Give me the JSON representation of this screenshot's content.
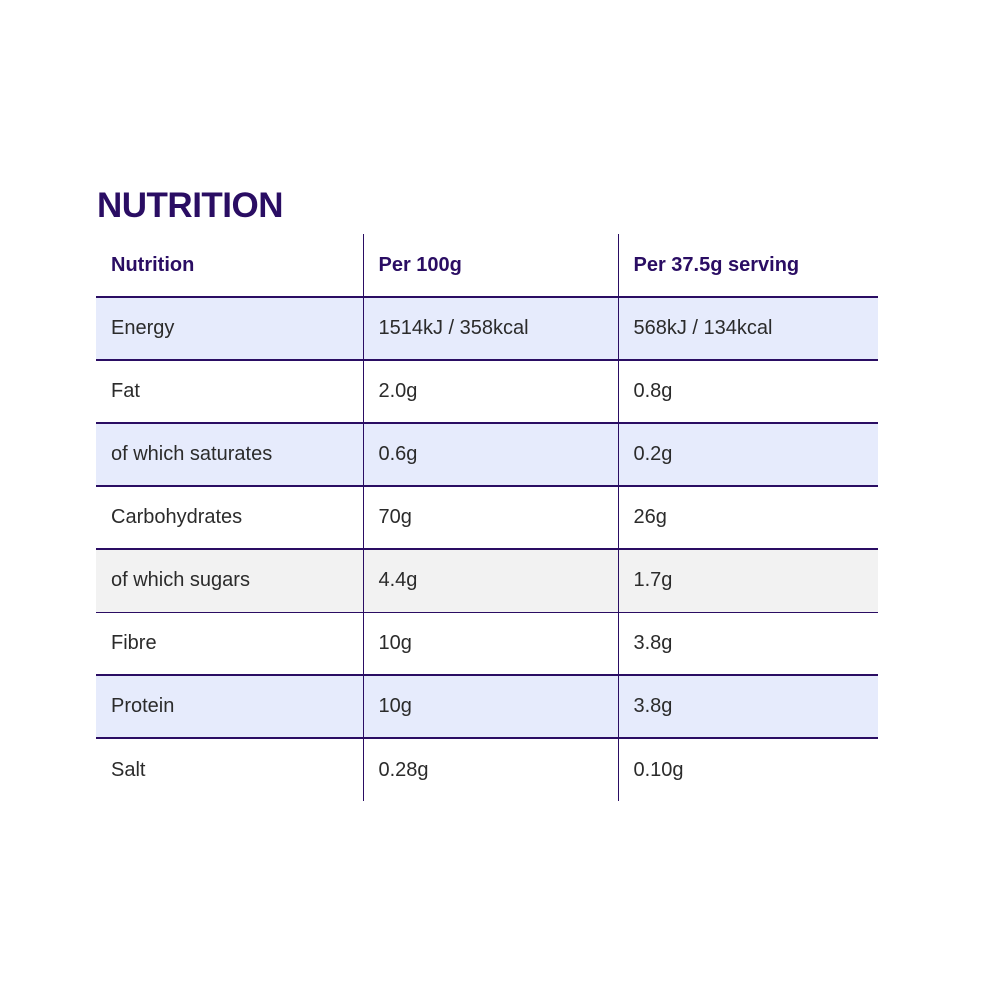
{
  "title": "NUTRITION",
  "table": {
    "headers": [
      "Nutrition",
      "Per 100g",
      "Per 37.5g serving"
    ],
    "rows": [
      {
        "nutrient": "Energy",
        "per_100g": "1514kJ / 358kcal",
        "per_serving": "568kJ / 134kcal",
        "shade": "blue"
      },
      {
        "nutrient": "Fat",
        "per_100g": "2.0g",
        "per_serving": "0.8g",
        "shade": "none"
      },
      {
        "nutrient": "of which saturates",
        "per_100g": "0.6g",
        "per_serving": "0.2g",
        "shade": "blue"
      },
      {
        "nutrient": "Carbohydrates",
        "per_100g": "70g",
        "per_serving": "26g",
        "shade": "none"
      },
      {
        "nutrient": "of which sugars",
        "per_100g": "4.4g",
        "per_serving": "1.7g",
        "shade": "grey"
      },
      {
        "nutrient": "Fibre",
        "per_100g": "10g",
        "per_serving": "3.8g",
        "shade": "none"
      },
      {
        "nutrient": "Protein",
        "per_100g": "10g",
        "per_serving": "3.8g",
        "shade": "blue"
      },
      {
        "nutrient": "Salt",
        "per_100g": "0.28g",
        "per_serving": "0.10g",
        "shade": "none"
      }
    ]
  },
  "colors": {
    "accent": "#2a0d63",
    "row_highlight": "#e6ebfc",
    "row_hover": "#f2f2f2"
  }
}
